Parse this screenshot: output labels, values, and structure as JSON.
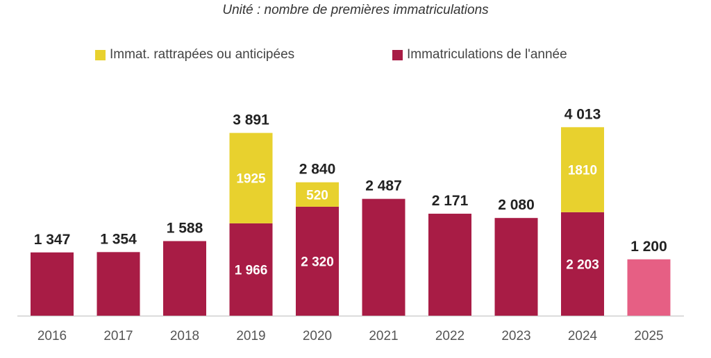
{
  "subtitle": "Unité : nombre de premières immatriculations",
  "legend": [
    {
      "label": "Immat. rattrapées ou anticipées",
      "color": "#e8d12e"
    },
    {
      "label": "Immatriculations de l'année",
      "color": "#a81c45"
    }
  ],
  "colors": {
    "base": "#a81c45",
    "extra": "#e8d12e",
    "forecast": "#e65f84"
  },
  "chart_data": {
    "type": "bar",
    "stacked": true,
    "categories": [
      "2016",
      "2017",
      "2018",
      "2019",
      "2020",
      "2021",
      "2022",
      "2023",
      "2024",
      "2025"
    ],
    "series": [
      {
        "name": "Immatriculations de l'année",
        "values": [
          1347,
          1354,
          1588,
          1966,
          2320,
          2487,
          2171,
          2080,
          2203,
          1200
        ]
      },
      {
        "name": "Immat. rattrapées ou anticipées",
        "values": [
          0,
          0,
          0,
          1925,
          520,
          0,
          0,
          0,
          1810,
          0
        ]
      }
    ],
    "totals": [
      1347,
      1354,
      1588,
      3891,
      2840,
      2487,
      2171,
      2080,
      4013,
      1200
    ],
    "total_labels": [
      "1 347",
      "1 354",
      "1 588",
      "3 891",
      "2 840",
      "2 487",
      "2 171",
      "2 080",
      "4 013",
      "1 200"
    ],
    "inner_base_labels": [
      "",
      "",
      "",
      "1 966",
      "2 320",
      "",
      "",
      "",
      "2 203",
      ""
    ],
    "inner_extra_labels": [
      "",
      "",
      "",
      "1925",
      "520",
      "",
      "",
      "",
      "1810",
      ""
    ],
    "legend_position": "top",
    "grid": false
  }
}
